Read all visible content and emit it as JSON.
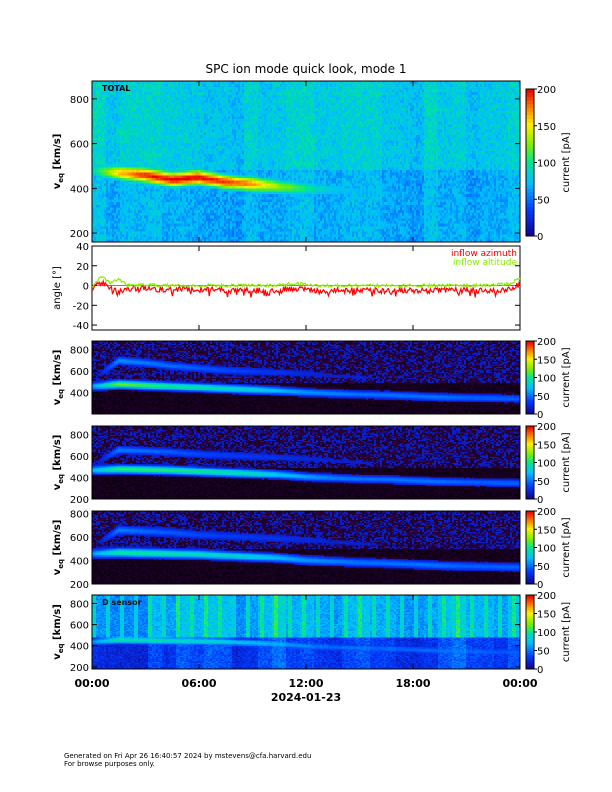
{
  "figure": {
    "title": "SPC ion mode quick look, mode 1",
    "footer_line1": "Generated on Fri Apr 26 16:40:57 2024 by mstevens@cfa.harvard.edu",
    "footer_line2": "For browse purposes only."
  },
  "chart_data": [
    {
      "type": "heatmap",
      "panel": "total",
      "title": "TOTAL",
      "ylabel": "v",
      "ylabel_sub": "eq",
      "ylabel_unit": "[km/s]",
      "ylim": [
        160,
        880
      ],
      "yticks": [
        "200",
        "400",
        "600",
        "800"
      ],
      "ytick_values": [
        200,
        400,
        600,
        800
      ],
      "colorbar": {
        "label": "current [pA]",
        "range": [
          0,
          200
        ],
        "ticks": [
          "0",
          "50",
          "100",
          "150",
          "200"
        ],
        "tick_values": [
          0,
          50,
          100,
          150,
          200
        ]
      },
      "palette": "blue-high",
      "beams": [
        {
          "speeds": [
            480,
            470,
            460,
            440,
            450,
            430,
            420,
            410,
            400,
            395,
            390,
            385,
            370,
            360,
            355,
            350,
            345
          ],
          "amplitudes": [
            60,
            140,
            170,
            180,
            180,
            170,
            150,
            110,
            80,
            60,
            50,
            50,
            45,
            45,
            45,
            40,
            40
          ]
        },
        {
          "speeds": [
            500,
            660,
            640,
            630,
            620,
            610,
            600,
            590,
            580,
            560,
            545,
            540,
            530,
            520,
            515,
            510,
            505
          ],
          "amplitudes": [
            0,
            70,
            60,
            60,
            55,
            50,
            45,
            40,
            35,
            30,
            30,
            25,
            25,
            25,
            20,
            20,
            20
          ]
        }
      ]
    },
    {
      "type": "line",
      "panel": "angle",
      "ylabel": "angle [°]",
      "ylim": [
        -45,
        40
      ],
      "yticks": [
        "-40",
        "-20",
        "0",
        "20",
        "40"
      ],
      "ytick_values": [
        -40,
        -20,
        0,
        20,
        40
      ],
      "series": [
        {
          "name": "inflow azimuth",
          "color": "#ff0000",
          "x": [
            0,
            0.5,
            1,
            1.5,
            2,
            3,
            4,
            6,
            8,
            10,
            11.5,
            12,
            13,
            14,
            16,
            18,
            20,
            22,
            23.5,
            24
          ],
          "y": [
            -5,
            4,
            -2,
            -6,
            -3,
            -3,
            -4,
            -4,
            -5,
            -5,
            -3,
            -4,
            -6,
            -5,
            -5,
            -5,
            -5,
            -5,
            -4,
            2
          ]
        },
        {
          "name": "inflow altitude",
          "color": "#88ee00",
          "x": [
            0,
            0.5,
            1,
            1.5,
            2,
            3,
            4,
            6,
            8,
            10,
            11.5,
            12,
            13,
            14,
            16,
            18,
            20,
            22,
            23.5,
            24
          ],
          "y": [
            -2,
            10,
            3,
            6,
            0,
            1,
            0,
            0,
            0,
            0,
            2,
            1,
            0,
            0,
            0,
            0,
            0,
            0,
            2,
            8
          ]
        }
      ]
    },
    {
      "type": "heatmap",
      "panel": "sensor-a",
      "title": "",
      "ylabel": "v",
      "ylabel_sub": "eq",
      "ylabel_unit": "[km/s]",
      "ylim": [
        200,
        880
      ],
      "yticks": [
        "400",
        "600",
        "800"
      ],
      "ytick_values": [
        400,
        600,
        800
      ],
      "colorbar": {
        "label": "current [pA]",
        "range": [
          0,
          200
        ],
        "ticks": [
          "0",
          "50",
          "100",
          "150",
          "200"
        ],
        "tick_values": [
          0,
          50,
          100,
          150,
          200
        ]
      },
      "palette": "dark-low",
      "beams": [
        {
          "speeds": [
            460,
            480,
            470,
            460,
            450,
            440,
            430,
            420,
            405,
            395,
            385,
            380,
            370,
            360,
            355,
            350,
            345
          ],
          "amplitudes": [
            60,
            120,
            110,
            100,
            95,
            90,
            85,
            70,
            60,
            55,
            50,
            50,
            50,
            50,
            45,
            45,
            45
          ]
        },
        {
          "speeds": [
            520,
            700,
            680,
            650,
            630,
            610,
            600,
            590,
            580,
            560,
            545,
            540,
            530,
            520,
            515,
            510,
            505
          ],
          "amplitudes": [
            0,
            55,
            50,
            45,
            40,
            35,
            30,
            25,
            20,
            15,
            15,
            10,
            10,
            10,
            8,
            8,
            8
          ]
        }
      ]
    },
    {
      "type": "heatmap",
      "panel": "sensor-b",
      "title": "",
      "ylabel": "v",
      "ylabel_sub": "eq",
      "ylabel_unit": "[km/s]",
      "ylim": [
        200,
        880
      ],
      "yticks": [
        "200",
        "400",
        "600",
        "800"
      ],
      "ytick_values": [
        200,
        400,
        600,
        800
      ],
      "colorbar": {
        "label": "current [pA]",
        "range": [
          0,
          200
        ],
        "ticks": [
          "0",
          "50",
          "100",
          "150",
          "200"
        ],
        "tick_values": [
          0,
          50,
          100,
          150,
          200
        ]
      },
      "palette": "dark-low",
      "beams": [
        {
          "speeds": [
            470,
            480,
            475,
            470,
            460,
            450,
            440,
            430,
            410,
            400,
            390,
            385,
            375,
            365,
            360,
            355,
            350
          ],
          "amplitudes": [
            70,
            110,
            110,
            105,
            100,
            95,
            90,
            75,
            65,
            55,
            50,
            50,
            50,
            50,
            45,
            45,
            45
          ]
        },
        {
          "speeds": [
            520,
            660,
            650,
            640,
            620,
            610,
            600,
            590,
            580,
            560,
            545,
            540,
            530,
            520,
            515,
            510,
            505
          ],
          "amplitudes": [
            0,
            50,
            45,
            40,
            35,
            30,
            28,
            25,
            20,
            15,
            15,
            10,
            10,
            10,
            8,
            8,
            8
          ]
        }
      ]
    },
    {
      "type": "heatmap",
      "panel": "sensor-c",
      "title": "",
      "ylabel": "v",
      "ylabel_sub": "eq",
      "ylabel_unit": "[km/s]",
      "ylim": [
        200,
        820
      ],
      "yticks": [
        "200",
        "400",
        "600",
        "800"
      ],
      "ytick_values": [
        200,
        400,
        600,
        800
      ],
      "colorbar": {
        "label": "current [pA]",
        "range": [
          0,
          200
        ],
        "ticks": [
          "0",
          "50",
          "100",
          "150",
          "200"
        ],
        "tick_values": [
          0,
          50,
          100,
          150,
          200
        ]
      },
      "palette": "dark-low",
      "beams": [
        {
          "speeds": [
            460,
            470,
            465,
            460,
            455,
            445,
            435,
            425,
            405,
            395,
            385,
            380,
            370,
            360,
            355,
            350,
            345
          ],
          "amplitudes": [
            60,
            100,
            100,
            95,
            90,
            85,
            80,
            70,
            60,
            55,
            50,
            50,
            50,
            50,
            45,
            45,
            45
          ]
        },
        {
          "speeds": [
            520,
            660,
            650,
            640,
            620,
            610,
            600,
            590,
            580,
            560,
            545,
            540,
            530,
            520,
            515,
            510,
            505
          ],
          "amplitudes": [
            0,
            50,
            45,
            40,
            35,
            30,
            28,
            25,
            20,
            15,
            15,
            10,
            10,
            10,
            8,
            8,
            8
          ]
        }
      ]
    },
    {
      "type": "heatmap",
      "panel": "sensor-d",
      "title": "D sensor",
      "ylabel": "v",
      "ylabel_sub": "eq",
      "ylabel_unit": "[km/s]",
      "ylim": [
        180,
        880
      ],
      "yticks": [
        "200",
        "400",
        "600",
        "800"
      ],
      "ytick_values": [
        200,
        400,
        600,
        800
      ],
      "colorbar": {
        "label": "current [pA]",
        "range": [
          0,
          200
        ],
        "ticks": [
          "0",
          "50",
          "100",
          "150",
          "200"
        ],
        "tick_values": [
          0,
          50,
          100,
          150,
          200
        ]
      },
      "palette": "blue-low",
      "beams": [
        {
          "speeds": [
            440,
            460,
            455,
            450,
            445,
            440,
            430,
            420,
            400,
            390,
            380,
            375,
            365,
            355,
            350,
            345,
            340
          ],
          "amplitudes": [
            50,
            90,
            85,
            80,
            75,
            70,
            65,
            55,
            45,
            40,
            40,
            40,
            40,
            40,
            40,
            35,
            35
          ]
        },
        {
          "speeds": [
            520,
            650,
            640,
            630,
            620,
            610,
            600,
            590,
            580,
            560,
            545,
            540,
            530,
            520,
            515,
            510,
            505
          ],
          "amplitudes": [
            0,
            25,
            25,
            22,
            20,
            18,
            16,
            14,
            12,
            10,
            10,
            8,
            8,
            8,
            6,
            6,
            6
          ]
        }
      ]
    }
  ],
  "time_axis": {
    "range_hours": [
      0,
      24
    ],
    "tick_hours": [
      0,
      6,
      12,
      18,
      24
    ],
    "tick_labels": [
      "00:00",
      "06:00",
      "12:00",
      "18:00",
      "00:00"
    ],
    "date_label": "2024-01-23"
  }
}
